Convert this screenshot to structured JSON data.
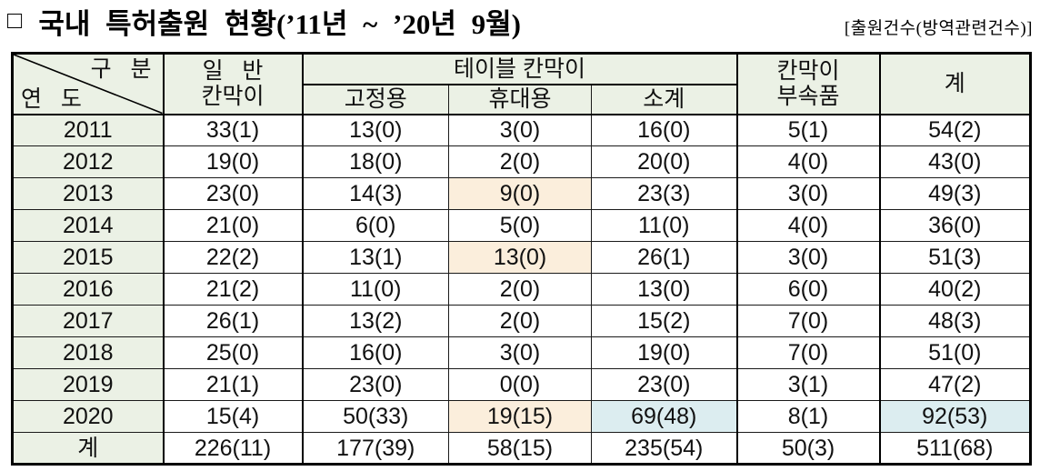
{
  "title": {
    "box": "□",
    "text": "국내 특허출원 현황(’11년 ~ ’20년 9월)",
    "unit": "[출원건수(방역관련건수)]"
  },
  "colors": {
    "green": "#ebf1e5",
    "orange": "#fbeedc",
    "blue": "#dcedf0"
  },
  "table": {
    "header": {
      "diagonal_top": "구   분",
      "diagonal_bottom": "연   도",
      "col_general": "일   반\n칸막이",
      "col_table_group": "테이블 칸막이",
      "col_fixed": "고정용",
      "col_portable": "휴대용",
      "col_subtotal": "소계",
      "col_accessory": "칸막이\n부속품",
      "col_total": "계"
    },
    "rows": [
      {
        "year": "2011",
        "cells": [
          {
            "text": "33(1)"
          },
          {
            "text": "13(0)"
          },
          {
            "text": "3(0)"
          },
          {
            "text": "16(0)"
          },
          {
            "text": "5(1)"
          },
          {
            "text": "54(2)"
          }
        ]
      },
      {
        "year": "2012",
        "cells": [
          {
            "text": "19(0)"
          },
          {
            "text": "18(0)"
          },
          {
            "text": "2(0)"
          },
          {
            "text": "20(0)"
          },
          {
            "text": "4(0)"
          },
          {
            "text": "43(0)"
          }
        ]
      },
      {
        "year": "2013",
        "cells": [
          {
            "text": "23(0)"
          },
          {
            "text": "14(3)"
          },
          {
            "text": "9(0)",
            "hl": "orange"
          },
          {
            "text": "23(3)"
          },
          {
            "text": "3(0)"
          },
          {
            "text": "49(3)"
          }
        ]
      },
      {
        "year": "2014",
        "cells": [
          {
            "text": "21(0)"
          },
          {
            "text": "6(0)"
          },
          {
            "text": "5(0)"
          },
          {
            "text": "11(0)"
          },
          {
            "text": "4(0)"
          },
          {
            "text": "36(0)"
          }
        ]
      },
      {
        "year": "2015",
        "cells": [
          {
            "text": "22(2)"
          },
          {
            "text": "13(1)"
          },
          {
            "text": "13(0)",
            "hl": "orange"
          },
          {
            "text": "26(1)"
          },
          {
            "text": "3(0)"
          },
          {
            "text": "51(3)"
          }
        ]
      },
      {
        "year": "2016",
        "cells": [
          {
            "text": "21(2)"
          },
          {
            "text": "11(0)"
          },
          {
            "text": "2(0)"
          },
          {
            "text": "13(0)"
          },
          {
            "text": "6(0)"
          },
          {
            "text": "40(2)"
          }
        ]
      },
      {
        "year": "2017",
        "cells": [
          {
            "text": "26(1)"
          },
          {
            "text": "13(2)"
          },
          {
            "text": "2(0)"
          },
          {
            "text": "15(2)"
          },
          {
            "text": "7(0)"
          },
          {
            "text": "48(3)"
          }
        ]
      },
      {
        "year": "2018",
        "cells": [
          {
            "text": "25(0)"
          },
          {
            "text": "16(0)"
          },
          {
            "text": "3(0)"
          },
          {
            "text": "19(0)"
          },
          {
            "text": "7(0)"
          },
          {
            "text": "51(0)"
          }
        ]
      },
      {
        "year": "2019",
        "cells": [
          {
            "text": "21(1)"
          },
          {
            "text": "23(0)"
          },
          {
            "text": "0(0)"
          },
          {
            "text": "23(0)"
          },
          {
            "text": "3(1)"
          },
          {
            "text": "47(2)"
          }
        ]
      },
      {
        "year": "2020",
        "cells": [
          {
            "text": "15(4)"
          },
          {
            "text": "50(33)"
          },
          {
            "text": "19(15)",
            "hl": "orange"
          },
          {
            "text": "69(48)",
            "hl": "blue"
          },
          {
            "text": "8(1)"
          },
          {
            "text": "92(53)",
            "hl": "blue"
          }
        ]
      },
      {
        "year": "계",
        "total": true,
        "cells": [
          {
            "text": "226(11)"
          },
          {
            "text": "177(39)"
          },
          {
            "text": "58(15)"
          },
          {
            "text": "235(54)"
          },
          {
            "text": "50(3)"
          },
          {
            "text": "511(68)"
          }
        ]
      }
    ]
  }
}
